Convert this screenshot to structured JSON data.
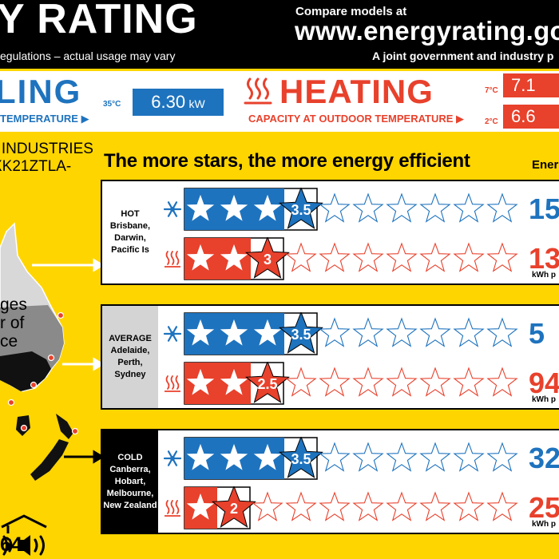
{
  "header": {
    "title": "Y RATING",
    "disclaimer": "egulations – actual usage may vary",
    "compare": "Compare models at",
    "website": "www.energyrating.gov",
    "joint": "A joint government and industry p"
  },
  "cooling": {
    "word": "LING",
    "sub": "TEMPERATURE",
    "temp": "35°C",
    "value": "6.30",
    "unit": "kW"
  },
  "heating": {
    "word": "HEATING",
    "sub": "CAPACITY AT OUTDOOR TEMPERATURE",
    "temp1": "7°C",
    "value1": "7.1",
    "temp2": "2°C",
    "value2": "6.6"
  },
  "brand": "INDUSTRIES",
  "model": "XK21ZTLA-",
  "tagline": "The more stars, the more energy efficient",
  "energy_col": "Energ",
  "zones": [
    {
      "lines": [
        "HOT",
        "Brisbane,",
        "Darwin,",
        "Pacific Is"
      ],
      "cool_stars": 3.5,
      "cool_label": "3.5",
      "cool_value": "15",
      "heat_stars": 3,
      "heat_label": "3",
      "heat_value": "13",
      "kwh": "kWh p"
    },
    {
      "lines": [
        "AVERAGE",
        "Adelaide,",
        "Perth,",
        "Sydney"
      ],
      "cool_stars": 3.5,
      "cool_label": "3.5",
      "cool_value": "5",
      "heat_stars": 2.5,
      "heat_label": "2.5",
      "heat_value": "94",
      "kwh": "kWh p"
    },
    {
      "lines": [
        "COLD",
        "Canberra,",
        "Hobart,",
        "Melbourne,",
        "New Zealand"
      ],
      "cool_stars": 3.5,
      "cool_label": "3.5",
      "cool_value": "32",
      "heat_stars": 2,
      "heat_label": "2",
      "heat_value": "25",
      "kwh": "kWh p"
    }
  ],
  "map_text": [
    "ges",
    "r of",
    "ce"
  ],
  "sound_value": "64",
  "colors": {
    "blue": "#1e73be",
    "red": "#e8412c",
    "yellow": "#ffd500"
  },
  "icons": {
    "cool": "snowflake-icon",
    "heat": "heat-waves-icon",
    "sound": "speaker-sound-icon"
  }
}
